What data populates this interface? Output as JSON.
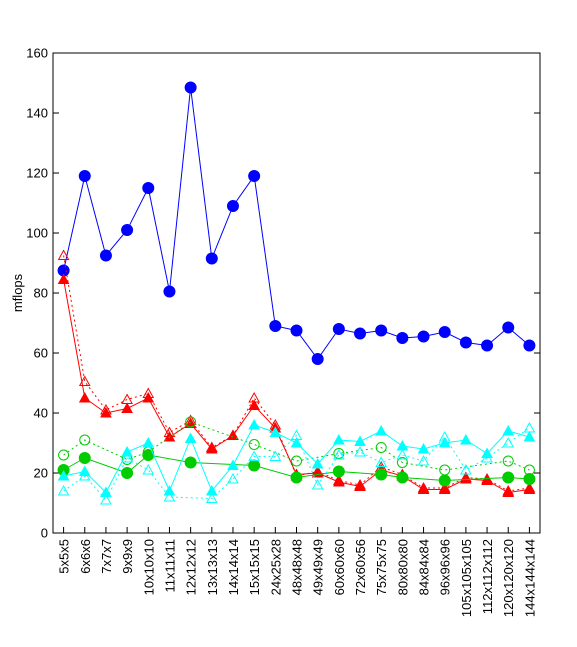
{
  "chart_data": {
    "type": "line",
    "title": "",
    "xlabel": "",
    "ylabel": "mflops",
    "ylim": [
      0,
      160
    ],
    "yticks": [
      0,
      20,
      40,
      60,
      80,
      100,
      120,
      140,
      160
    ],
    "grid": false,
    "legend": "none",
    "categories": [
      "5x5x5",
      "6x6x6",
      "7x7x7",
      "9x9x9",
      "10x10x10",
      "11x11x11",
      "12x12x12",
      "13x13x13",
      "14x14x14",
      "15x15x15",
      "24x25x28",
      "48x48x48",
      "49x49x49",
      "60x60x60",
      "72x60x56",
      "75x75x75",
      "80x80x80",
      "84x84x84",
      "96x96x96",
      "105x105x105",
      "112x112x112",
      "120x120x120",
      "144x144x144"
    ],
    "series": [
      {
        "color": "#0000ff",
        "marker": "filled-circle",
        "line": "solid",
        "values": [
          87.5,
          119,
          92.5,
          101,
          115,
          80.5,
          148.5,
          91.5,
          109,
          119,
          69,
          67.5,
          58,
          68,
          66.5,
          67.5,
          65,
          65.5,
          67,
          63.5,
          62.5,
          68.5,
          62.5
        ]
      },
      {
        "color": "#ff0000",
        "marker": "filled-triangle",
        "line": "solid",
        "values": [
          84.5,
          45,
          40,
          41.5,
          45,
          32,
          36.5,
          28,
          32.5,
          42.5,
          35,
          19.5,
          20,
          17,
          15.5,
          21,
          19,
          14.5,
          14.5,
          18,
          17.5,
          13.5,
          14.5
        ]
      },
      {
        "color": "#ff0000",
        "marker": "open-triangle",
        "line": "dotted",
        "values": [
          92.5,
          50.5,
          41,
          44.5,
          46.5,
          33.5,
          37.5,
          28.5,
          32.5,
          45,
          36,
          19,
          20.5,
          17.5,
          16,
          22,
          19.5,
          15,
          15,
          18.5,
          18,
          14,
          15
        ]
      },
      {
        "color": "#00cc00",
        "marker": "filled-circle",
        "line": "solid",
        "values": [
          21,
          25,
          null,
          20,
          26,
          null,
          23.5,
          null,
          null,
          22.5,
          null,
          18.5,
          null,
          20.5,
          null,
          19.5,
          18.5,
          null,
          17.5,
          null,
          null,
          18.5,
          18
        ]
      },
      {
        "color": "#00cc00",
        "marker": "open-circle",
        "line": "dotted",
        "values": [
          26,
          31,
          null,
          24.5,
          27,
          null,
          37,
          null,
          null,
          29.5,
          null,
          24,
          null,
          26.5,
          null,
          28.5,
          23.5,
          null,
          21,
          null,
          null,
          24,
          21
        ]
      },
      {
        "color": "#00ffff",
        "marker": "filled-triangle",
        "line": "solid",
        "values": [
          19,
          20.5,
          13.5,
          27,
          30,
          14,
          31.5,
          14,
          22.5,
          36,
          33.5,
          30,
          23,
          31,
          30.5,
          34,
          29,
          28,
          30,
          31,
          26.5,
          34,
          32
        ]
      },
      {
        "color": "#00ffff",
        "marker": "open-triangle",
        "line": "dotted",
        "values": [
          14,
          19,
          11,
          25,
          21,
          12,
          null,
          11.5,
          18,
          25.5,
          25.5,
          32.5,
          16,
          26,
          27,
          23.5,
          26,
          24,
          32,
          21,
          25,
          30,
          35
        ]
      }
    ]
  }
}
